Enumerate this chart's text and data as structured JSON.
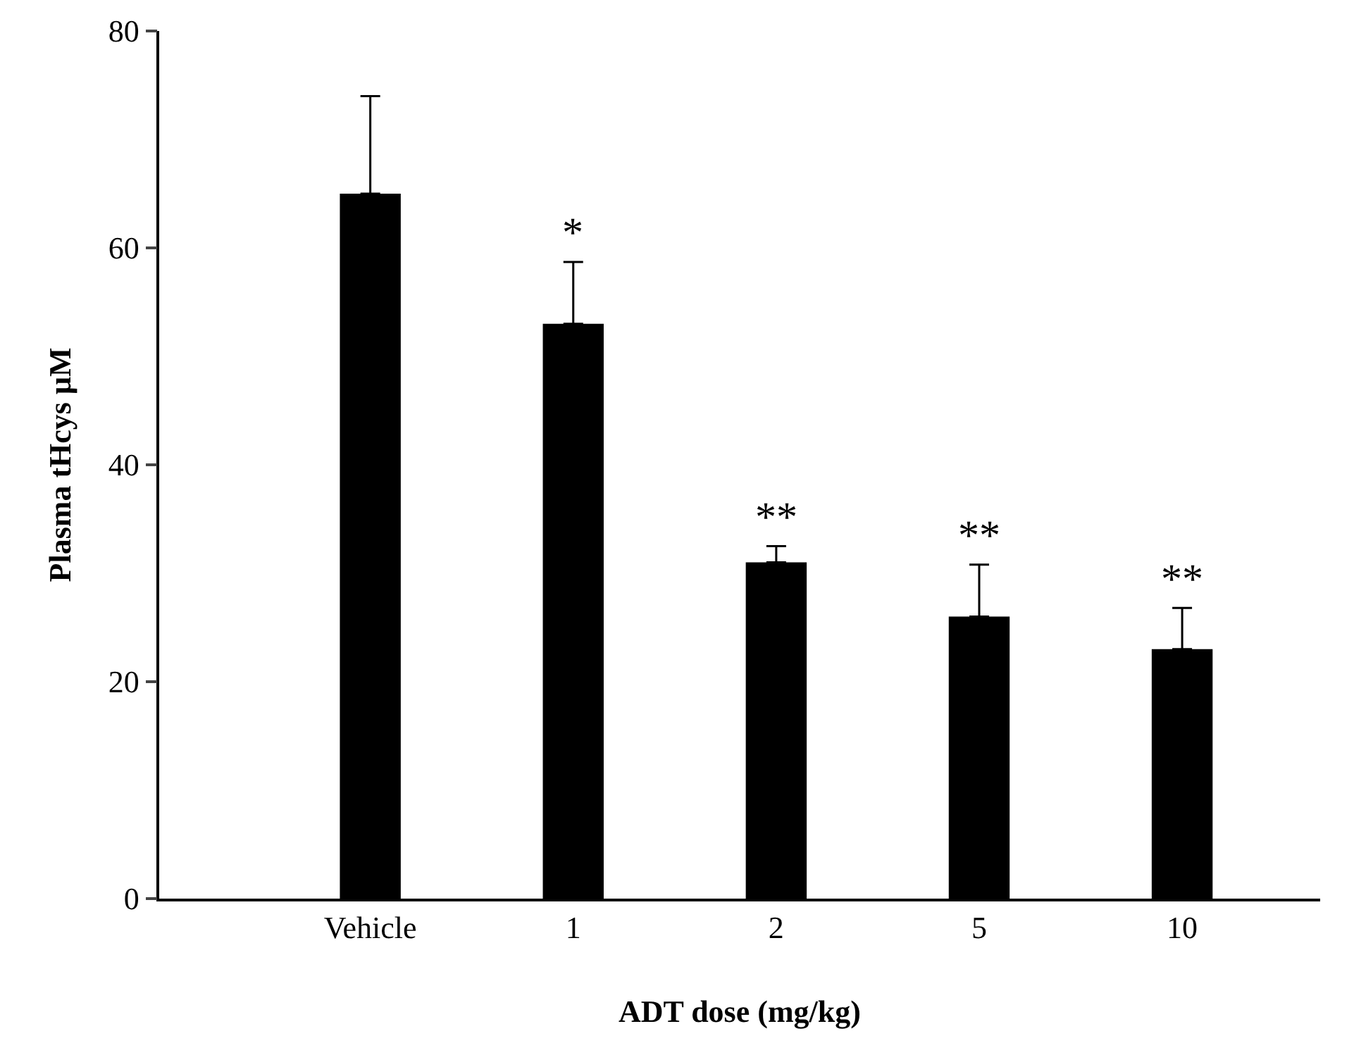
{
  "chart_data": {
    "type": "bar",
    "xlabel": "ADT dose (mg/kg)",
    "ylabel": "Plasma tHcys μM",
    "categories": [
      "Vehicle",
      "1",
      "2",
      "5",
      "10"
    ],
    "values": [
      65,
      53,
      31,
      26,
      23
    ],
    "errors": [
      [
        65,
        74
      ],
      [
        53,
        58.7
      ],
      [
        31,
        32.5
      ],
      [
        26,
        30.8
      ],
      [
        23,
        26.8
      ]
    ],
    "color": "#000000",
    "ylim": [
      0,
      80
    ],
    "yticks": [
      0,
      20,
      40,
      60,
      80
    ],
    "grid": false,
    "legend": false,
    "annotations": [
      {
        "text": "*",
        "x": "1",
        "y": 58.7
      },
      {
        "text": "**",
        "x": "2",
        "y": 32.5
      },
      {
        "text": "**",
        "x": "5",
        "y": 30.8
      },
      {
        "text": "**",
        "x": "10",
        "y": 26.8
      }
    ]
  }
}
